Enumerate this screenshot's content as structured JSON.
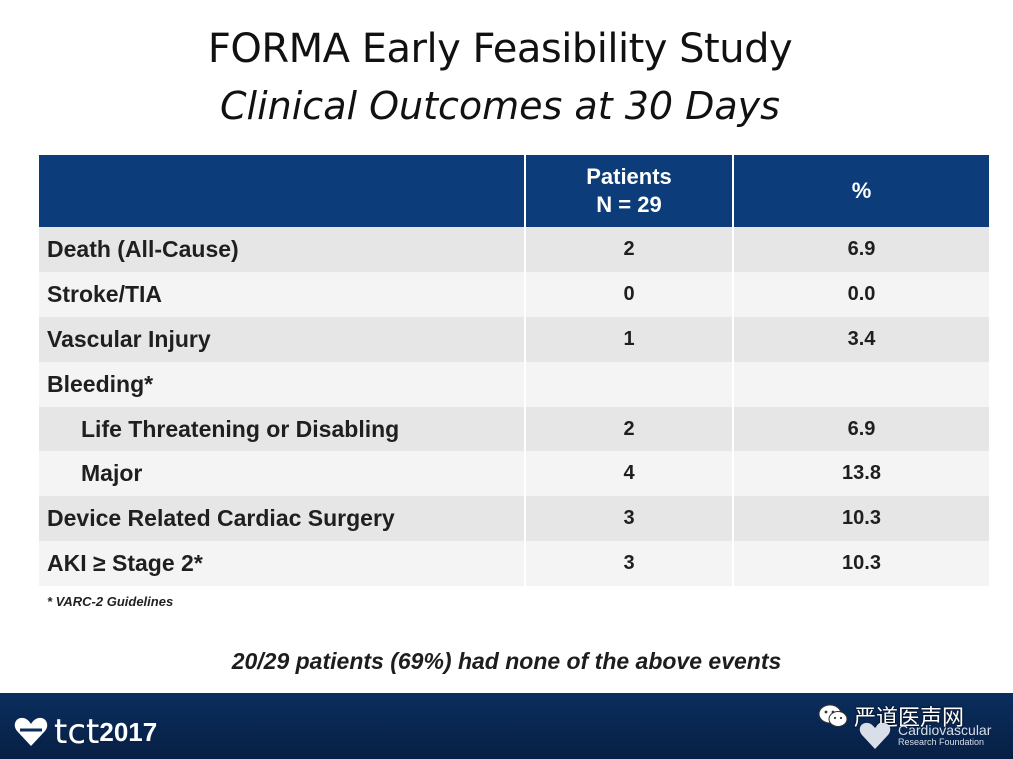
{
  "title": "FORMA Early Feasibility Study",
  "subtitle": "Clinical Outcomes at 30 Days",
  "table": {
    "headers": {
      "label": "",
      "patients_line1": "Patients",
      "patients_line2": "N = 29",
      "percent": "%"
    },
    "rows": [
      {
        "label": "Death (All-Cause)",
        "patients": "2",
        "percent": "6.9"
      },
      {
        "label": "Stroke/TIA",
        "patients": "0",
        "percent": "0.0"
      },
      {
        "label": "Vascular Injury",
        "patients": "1",
        "percent": "3.4"
      },
      {
        "label": "Bleeding*",
        "patients": "",
        "percent": ""
      },
      {
        "label": "Life Threatening or Disabling",
        "patients": "2",
        "percent": "6.9"
      },
      {
        "label": "Major",
        "patients": "4",
        "percent": "13.8"
      },
      {
        "label": "Device Related Cardiac Surgery",
        "patients": "3",
        "percent": "10.3"
      },
      {
        "label": "AKI ≥ Stage 2*",
        "patients": "3",
        "percent": "10.3"
      }
    ]
  },
  "footnote": "* VARC-2 Guidelines",
  "summary": "20/29 patients (69%) had none of the above events",
  "footer": {
    "logo_text": "tct",
    "logo_year": "2017",
    "watermark_text": "严道医声网",
    "crf_line1": "Cardiovascular",
    "crf_line2": "Research Foundation"
  },
  "colors": {
    "header_bg": "#0c3d7a",
    "footer_bg": "#0a2e5e",
    "row_odd": "#e6e6e6",
    "row_even": "#f4f4f4"
  }
}
